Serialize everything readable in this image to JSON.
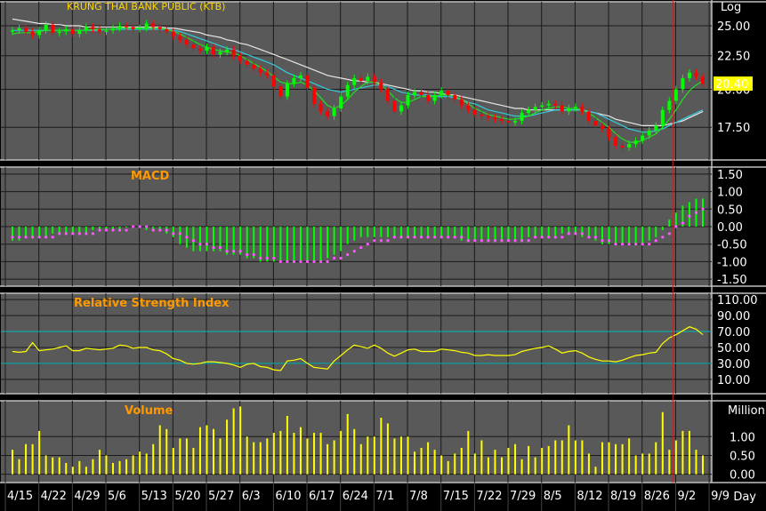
{
  "chart_data": [
    {
      "panel": "price",
      "type": "candlestick",
      "title": "KRUNG THAI BANK PUBLIC (KTB)",
      "scale_label": "Log",
      "y_ticks": [
        "25.00",
        "22.50",
        "20.00",
        "17.50"
      ],
      "y_tick_values": [
        25,
        22.5,
        20,
        17.5
      ],
      "ylim": [
        15.6,
        27.2
      ],
      "last_price_label": "20.40",
      "last_price": 20.4,
      "highlight_color": "#ffff00",
      "up_color": "#00ff00",
      "down_color": "#ff0000",
      "close": [
        24.6,
        24.8,
        24.5,
        24.2,
        24.6,
        25.1,
        24.4,
        24.5,
        24.7,
        24.3,
        24.6,
        24.9,
        24.7,
        24.5,
        24.6,
        24.8,
        25.0,
        24.9,
        24.7,
        24.8,
        25.2,
        24.9,
        24.7,
        24.5,
        24.1,
        23.8,
        23.4,
        23.1,
        22.9,
        23.2,
        22.6,
        22.8,
        23.0,
        22.5,
        22.1,
        21.8,
        21.5,
        21.2,
        21.0,
        20.2,
        19.5,
        20.4,
        20.8,
        21.0,
        20.1,
        19.0,
        18.5,
        18.2,
        18.7,
        19.5,
        20.3,
        20.8,
        20.6,
        20.9,
        20.5,
        20.0,
        19.2,
        18.5,
        18.9,
        19.6,
        19.8,
        19.6,
        19.2,
        19.6,
        19.9,
        19.6,
        19.3,
        18.9,
        18.6,
        18.3,
        18.2,
        18.1,
        18.0,
        17.9,
        17.8,
        17.9,
        18.4,
        18.6,
        18.8,
        18.9,
        19.0,
        18.9,
        18.5,
        18.7,
        18.8,
        18.5,
        17.9,
        17.6,
        17.4,
        16.9,
        16.4,
        16.3,
        16.5,
        16.7,
        17.0,
        17.3,
        17.6,
        18.6,
        19.2,
        20.0,
        20.8,
        21.2,
        20.9,
        20.4
      ],
      "ma_short": [
        24.3,
        24.4,
        24.4,
        24.4,
        24.5,
        24.6,
        24.6,
        24.6,
        24.6,
        24.6,
        24.6,
        24.6,
        24.7,
        24.7,
        24.7,
        24.7,
        24.8,
        24.8,
        24.8,
        24.8,
        24.8,
        24.8,
        24.8,
        24.7,
        24.5,
        24.3,
        24.0,
        23.7,
        23.4,
        23.2,
        23.0,
        22.9,
        22.8,
        22.7,
        22.5,
        22.2,
        21.9,
        21.6,
        21.3,
        20.9,
        20.5,
        20.4,
        20.4,
        20.5,
        20.3,
        19.9,
        19.4,
        18.9,
        18.7,
        18.9,
        19.3,
        19.8,
        20.2,
        20.5,
        20.5,
        20.3,
        19.9,
        19.4,
        19.1,
        19.1,
        19.3,
        19.5,
        19.5,
        19.5,
        19.6,
        19.6,
        19.5,
        19.3,
        19.0,
        18.7,
        18.5,
        18.3,
        18.2,
        18.1,
        18.0,
        18.0,
        18.1,
        18.2,
        18.4,
        18.6,
        18.7,
        18.8,
        18.8,
        18.7,
        18.7,
        18.6,
        18.4,
        18.1,
        17.8,
        17.5,
        17.1,
        16.8,
        16.6,
        16.6,
        16.7,
        16.9,
        17.1,
        17.5,
        18.0,
        18.6,
        19.3,
        19.9,
        20.3,
        20.6
      ],
      "ma_mid": [
        24.6,
        24.6,
        24.6,
        24.6,
        24.6,
        24.6,
        24.6,
        24.6,
        24.6,
        24.6,
        24.6,
        24.6,
        24.6,
        24.6,
        24.7,
        24.7,
        24.7,
        24.7,
        24.7,
        24.7,
        24.7,
        24.7,
        24.7,
        24.7,
        24.6,
        24.5,
        24.3,
        24.1,
        23.9,
        23.7,
        23.5,
        23.3,
        23.1,
        23.0,
        22.8,
        22.6,
        22.4,
        22.2,
        22.0,
        21.8,
        21.5,
        21.2,
        21.0,
        20.8,
        20.6,
        20.4,
        20.2,
        20.0,
        19.9,
        19.8,
        19.9,
        20.0,
        20.1,
        20.2,
        20.3,
        20.3,
        20.2,
        20.0,
        19.8,
        19.7,
        19.6,
        19.6,
        19.6,
        19.5,
        19.5,
        19.5,
        19.4,
        19.3,
        19.1,
        19.0,
        18.8,
        18.6,
        18.5,
        18.4,
        18.3,
        18.2,
        18.2,
        18.2,
        18.3,
        18.4,
        18.5,
        18.6,
        18.6,
        18.6,
        18.6,
        18.6,
        18.5,
        18.4,
        18.2,
        18.0,
        17.8,
        17.6,
        17.4,
        17.3,
        17.2,
        17.2,
        17.3,
        17.4,
        17.6,
        17.8,
        18.0,
        18.2,
        18.4,
        18.6
      ],
      "ma_long": [
        25.6,
        25.5,
        25.4,
        25.3,
        25.2,
        25.2,
        25.1,
        25.1,
        25.0,
        25.0,
        25.0,
        24.9,
        24.9,
        24.9,
        24.9,
        24.9,
        24.9,
        24.9,
        24.9,
        24.9,
        24.9,
        24.9,
        24.9,
        24.8,
        24.8,
        24.7,
        24.6,
        24.5,
        24.4,
        24.2,
        24.1,
        24.0,
        23.8,
        23.7,
        23.5,
        23.4,
        23.2,
        23.0,
        22.8,
        22.6,
        22.4,
        22.2,
        22.0,
        21.8,
        21.6,
        21.4,
        21.2,
        21.0,
        20.9,
        20.8,
        20.7,
        20.6,
        20.6,
        20.5,
        20.5,
        20.4,
        20.3,
        20.2,
        20.1,
        20.0,
        19.9,
        19.9,
        19.8,
        19.8,
        19.7,
        19.6,
        19.6,
        19.5,
        19.4,
        19.3,
        19.2,
        19.1,
        19.0,
        18.9,
        18.8,
        18.7,
        18.7,
        18.6,
        18.6,
        18.6,
        18.6,
        18.6,
        18.6,
        18.6,
        18.6,
        18.6,
        18.5,
        18.4,
        18.3,
        18.2,
        18.0,
        17.9,
        17.8,
        17.7,
        17.6,
        17.6,
        17.6,
        17.6,
        17.7,
        17.8,
        17.9,
        18.1,
        18.3,
        18.5
      ]
    },
    {
      "panel": "macd",
      "type": "bar",
      "title": "MACD",
      "y_ticks": [
        "1.50",
        "1.00",
        "0.50",
        "0.00",
        "-0.50",
        "-1.00",
        "-1.50"
      ],
      "y_tick_values": [
        1.5,
        1.0,
        0.5,
        0.0,
        -0.5,
        -1.0,
        -1.5
      ],
      "ylim": [
        -1.7,
        1.7
      ],
      "bar_color": "#00ff00",
      "signal_color": "#ff55ff",
      "histogram": [
        -0.4,
        -0.4,
        -0.3,
        -0.3,
        -0.3,
        -0.3,
        -0.2,
        -0.2,
        -0.2,
        -0.2,
        -0.2,
        -0.2,
        -0.1,
        -0.1,
        -0.1,
        -0.1,
        -0.1,
        0.0,
        0.0,
        0.0,
        -0.1,
        -0.1,
        -0.1,
        -0.2,
        -0.3,
        -0.5,
        -0.6,
        -0.7,
        -0.7,
        -0.7,
        -0.7,
        -0.7,
        -0.8,
        -0.8,
        -0.8,
        -0.9,
        -0.9,
        -1.0,
        -1.0,
        -1.0,
        -1.0,
        -1.0,
        -1.0,
        -1.0,
        -1.0,
        -1.0,
        -1.0,
        -0.9,
        -0.8,
        -0.7,
        -0.5,
        -0.4,
        -0.3,
        -0.3,
        -0.3,
        -0.3,
        -0.3,
        -0.3,
        -0.3,
        -0.3,
        -0.3,
        -0.3,
        -0.3,
        -0.3,
        -0.3,
        -0.3,
        -0.3,
        -0.4,
        -0.4,
        -0.4,
        -0.4,
        -0.4,
        -0.4,
        -0.4,
        -0.4,
        -0.4,
        -0.4,
        -0.3,
        -0.3,
        -0.3,
        -0.3,
        -0.3,
        -0.2,
        -0.2,
        -0.2,
        -0.3,
        -0.3,
        -0.4,
        -0.5,
        -0.5,
        -0.5,
        -0.5,
        -0.5,
        -0.5,
        -0.5,
        -0.4,
        -0.3,
        -0.1,
        0.2,
        0.4,
        0.6,
        0.7,
        0.8,
        0.8
      ],
      "signal": [
        -0.3,
        -0.3,
        -0.3,
        -0.3,
        -0.3,
        -0.3,
        -0.3,
        -0.2,
        -0.2,
        -0.2,
        -0.2,
        -0.2,
        -0.2,
        -0.1,
        -0.1,
        -0.1,
        -0.1,
        -0.1,
        0.0,
        0.0,
        0.0,
        -0.1,
        -0.1,
        -0.1,
        -0.2,
        -0.2,
        -0.3,
        -0.4,
        -0.5,
        -0.5,
        -0.6,
        -0.6,
        -0.7,
        -0.7,
        -0.7,
        -0.8,
        -0.8,
        -0.9,
        -0.9,
        -0.9,
        -1.0,
        -1.0,
        -1.0,
        -1.0,
        -1.0,
        -1.0,
        -1.0,
        -1.0,
        -0.9,
        -0.9,
        -0.8,
        -0.7,
        -0.6,
        -0.5,
        -0.4,
        -0.4,
        -0.4,
        -0.3,
        -0.3,
        -0.3,
        -0.3,
        -0.3,
        -0.3,
        -0.3,
        -0.3,
        -0.3,
        -0.3,
        -0.3,
        -0.4,
        -0.4,
        -0.4,
        -0.4,
        -0.4,
        -0.4,
        -0.4,
        -0.4,
        -0.4,
        -0.4,
        -0.3,
        -0.3,
        -0.3,
        -0.3,
        -0.3,
        -0.2,
        -0.2,
        -0.2,
        -0.3,
        -0.3,
        -0.4,
        -0.4,
        -0.5,
        -0.5,
        -0.5,
        -0.5,
        -0.5,
        -0.5,
        -0.4,
        -0.3,
        -0.2,
        0.0,
        0.1,
        0.3,
        0.4,
        0.5
      ]
    },
    {
      "panel": "rsi",
      "type": "line",
      "title": "Relative Strength Index",
      "y_ticks": [
        "110.00",
        "90.00",
        "70.00",
        "50.00",
        "30.00",
        "10.00"
      ],
      "y_tick_values": [
        110,
        90,
        70,
        50,
        30,
        10
      ],
      "ylim": [
        -8,
        118
      ],
      "levels": [
        70,
        30
      ],
      "level_color": "#00bcbc",
      "line_color": "#ffff00",
      "values": [
        45,
        44,
        45,
        56,
        46,
        47,
        48,
        50,
        52,
        46,
        46,
        49,
        48,
        47,
        48,
        49,
        53,
        52,
        49,
        50,
        50,
        47,
        46,
        42,
        36,
        34,
        30,
        29,
        30,
        32,
        32,
        31,
        30,
        28,
        25,
        29,
        30,
        26,
        25,
        22,
        21,
        33,
        34,
        36,
        30,
        25,
        24,
        23,
        33,
        40,
        47,
        53,
        51,
        49,
        53,
        49,
        43,
        39,
        43,
        47,
        48,
        45,
        45,
        45,
        48,
        47,
        46,
        44,
        43,
        40,
        40,
        41,
        40,
        40,
        40,
        41,
        45,
        47,
        49,
        50,
        52,
        48,
        43,
        45,
        46,
        43,
        38,
        35,
        33,
        33,
        32,
        34,
        37,
        40,
        41,
        43,
        44,
        55,
        62,
        66,
        71,
        76,
        73,
        66
      ]
    },
    {
      "panel": "volume",
      "type": "bar",
      "title": "Volume",
      "unit_label": "Million",
      "y_ticks": [
        "1.00",
        "0.50",
        "0.00"
      ],
      "y_tick_values": [
        1.0,
        0.5,
        0.0
      ],
      "ylim": [
        -0.22,
        1.95
      ],
      "bar_color": "#ffff00",
      "values": [
        0.65,
        0.4,
        0.8,
        0.8,
        1.15,
        0.5,
        0.45,
        0.45,
        0.3,
        0.2,
        0.35,
        0.2,
        0.4,
        0.65,
        0.5,
        0.3,
        0.35,
        0.4,
        0.5,
        0.6,
        0.55,
        0.8,
        1.3,
        1.2,
        0.7,
        0.95,
        0.95,
        0.7,
        1.25,
        1.3,
        1.2,
        0.95,
        1.45,
        1.75,
        1.8,
        1.0,
        0.85,
        0.85,
        0.95,
        1.1,
        1.15,
        1.55,
        1.1,
        1.25,
        0.95,
        1.1,
        1.1,
        0.8,
        0.9,
        1.15,
        1.6,
        1.2,
        0.8,
        1.0,
        1.0,
        1.5,
        1.35,
        0.95,
        1.0,
        1.0,
        0.6,
        0.7,
        0.85,
        0.65,
        0.5,
        0.35,
        0.55,
        0.7,
        1.15,
        0.55,
        0.9,
        0.45,
        0.65,
        0.45,
        0.7,
        0.8,
        0.4,
        0.75,
        0.45,
        0.7,
        0.75,
        0.9,
        0.9,
        1.3,
        0.9,
        0.9,
        0.55,
        0.2,
        0.85,
        0.85,
        0.8,
        0.8,
        0.95,
        0.5,
        0.55,
        0.55,
        0.85,
        1.65,
        0.65,
        0.9,
        1.15,
        1.15,
        0.65,
        0.5
      ],
      "x_axis_label": "Day"
    }
  ],
  "x_axis": {
    "tick_labels": [
      "4/15",
      "4/22",
      "4/29",
      "5/6",
      "5/13",
      "5/20",
      "5/27",
      "6/3",
      "6/10",
      "6/17",
      "6/24",
      "7/1",
      "7/8",
      "7/15",
      "7/22",
      "7/29",
      "8/5",
      "8/12",
      "8/19",
      "8/26",
      "9/2",
      "9/9"
    ],
    "tick_index": [
      0,
      5,
      10,
      15,
      20,
      25,
      30,
      35,
      40,
      45,
      50,
      55,
      60,
      65,
      70,
      75,
      80,
      85,
      90,
      95,
      100,
      105
    ],
    "label": "Day",
    "marker_index": 98,
    "marker_color": "#cc2222"
  }
}
